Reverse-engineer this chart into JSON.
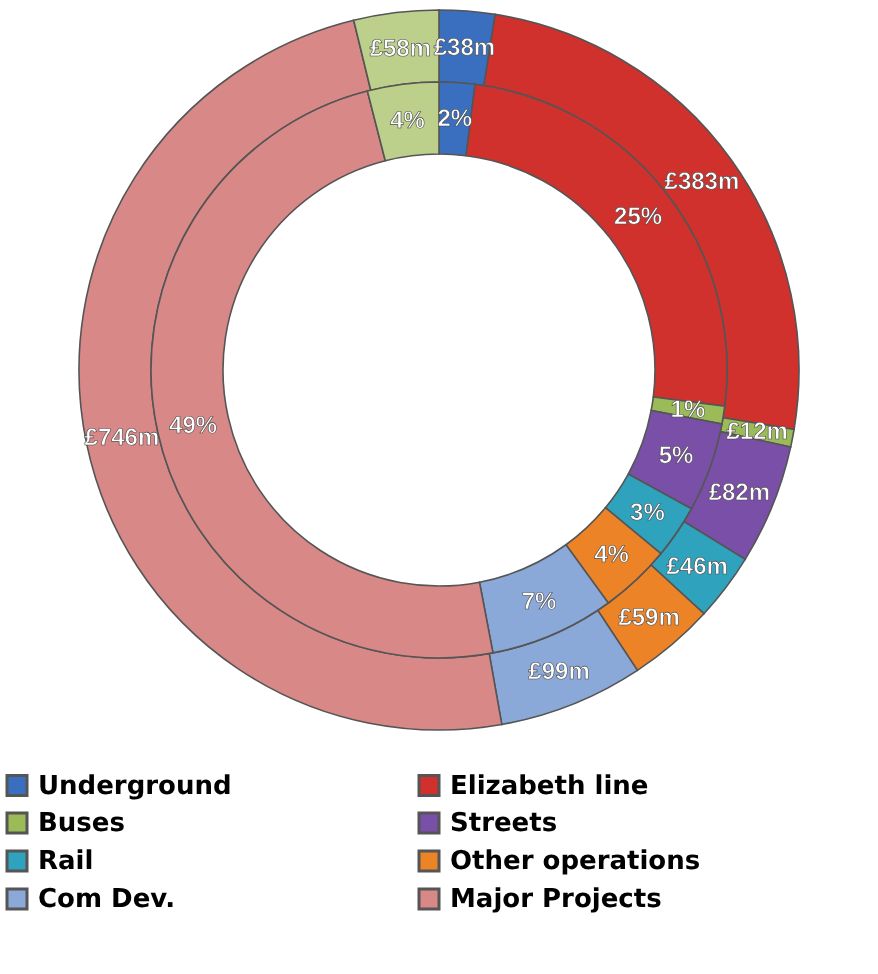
{
  "chart_data": {
    "type": "donut",
    "categories": [
      "Underground",
      "Elizabeth line",
      "Buses",
      "Streets",
      "Rail",
      "Other operations",
      "Com Dev.",
      "Major Projects",
      null
    ],
    "colors": [
      "#3a6fc0",
      "#d0312d",
      "#9bbb59",
      "#7a4fa8",
      "#2fa3bd",
      "#ec8427",
      "#8aa9d8",
      "#d98888",
      "#bcd08c"
    ],
    "series": [
      {
        "values": [
          38,
          383,
          12,
          82,
          46,
          59,
          99,
          746,
          58
        ],
        "value_labels": [
          "£38m",
          "£383m",
          "£12m",
          "£82m",
          "£46m",
          "£59m",
          "£99m",
          "£746m",
          "£58m"
        ]
      },
      {
        "values": [
          2,
          25,
          1,
          5,
          3,
          4,
          7,
          49,
          4
        ],
        "value_labels": [
          "2%",
          "25%",
          "1%",
          "5%",
          "3%",
          "4%",
          "7%",
          "49%",
          "4%"
        ]
      }
    ],
    "legend": "bottom"
  }
}
